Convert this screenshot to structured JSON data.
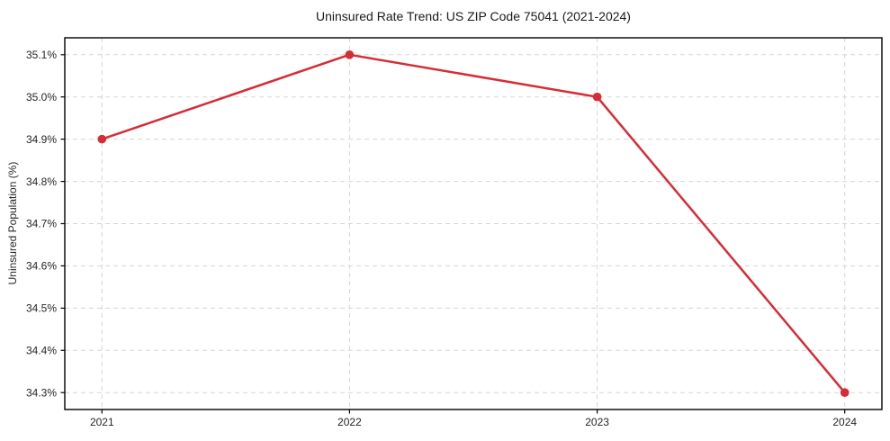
{
  "chart_data": {
    "type": "line",
    "title": "Uninsured Rate Trend: US ZIP Code 75041 (2021-2024)",
    "xlabel": "",
    "ylabel": "Uninsured Population (%)",
    "x": [
      2021,
      2022,
      2023,
      2024
    ],
    "values": [
      34.9,
      35.1,
      35.0,
      34.3
    ],
    "series_name": "Uninsured rate",
    "xticks": [
      2021,
      2022,
      2023,
      2024
    ],
    "xtick_labels": [
      "2021",
      "2022",
      "2023",
      "2024"
    ],
    "yticks": [
      34.3,
      34.4,
      34.5,
      34.6,
      34.7,
      34.8,
      34.9,
      35.0,
      35.1
    ],
    "ytick_labels": [
      "34.3%",
      "34.4%",
      "34.5%",
      "34.6%",
      "34.7%",
      "34.8%",
      "34.9%",
      "35.0%",
      "35.1%"
    ],
    "xlim": [
      2020.85,
      2024.15
    ],
    "ylim": [
      34.26,
      35.14
    ],
    "grid": true,
    "grid_style": "dashed",
    "legend": false,
    "colors": {
      "line": "#d62c35",
      "marker": "#d62c35",
      "grid": "#d5d5d5",
      "axis": "#000000",
      "text": "#262626",
      "background": "#ffffff"
    }
  }
}
